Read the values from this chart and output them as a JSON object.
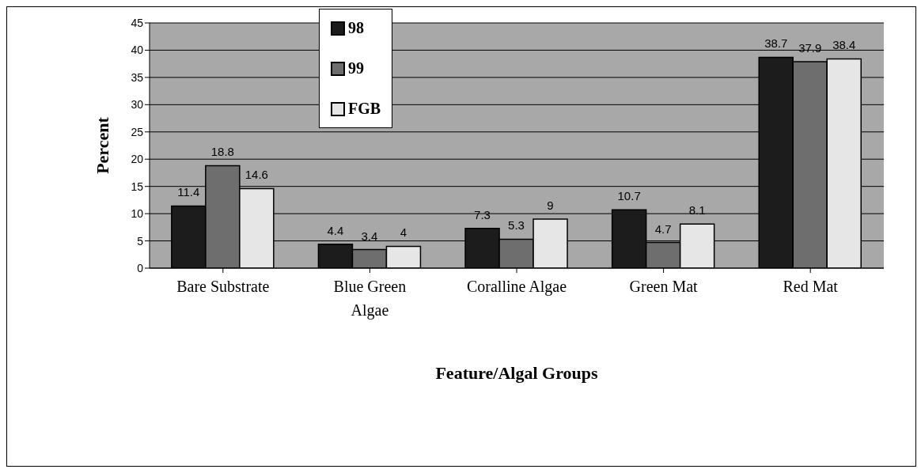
{
  "chart_data": {
    "type": "bar",
    "xlabel": "Feature/Algal Groups",
    "ylabel": "Percent",
    "categories": [
      "Bare Substrate",
      "Blue Green Algae",
      "Coralline Algae",
      "Green Mat",
      "Red Mat"
    ],
    "series": [
      {
        "name": "98",
        "color": "#1c1c1c",
        "values": [
          11.4,
          4.4,
          7.3,
          10.7,
          38.7
        ]
      },
      {
        "name": "99",
        "color": "#6e6e6e",
        "values": [
          18.8,
          3.4,
          5.3,
          4.7,
          37.9
        ]
      },
      {
        "name": "FGB",
        "color": "#e6e6e6",
        "values": [
          14.6,
          4,
          9,
          8.1,
          38.4
        ]
      }
    ],
    "ylim": [
      0,
      45
    ],
    "yticks": [
      0,
      5,
      10,
      15,
      20,
      25,
      30,
      35,
      40,
      45
    ],
    "grid": "y",
    "legend": "top",
    "data_labels": true
  }
}
